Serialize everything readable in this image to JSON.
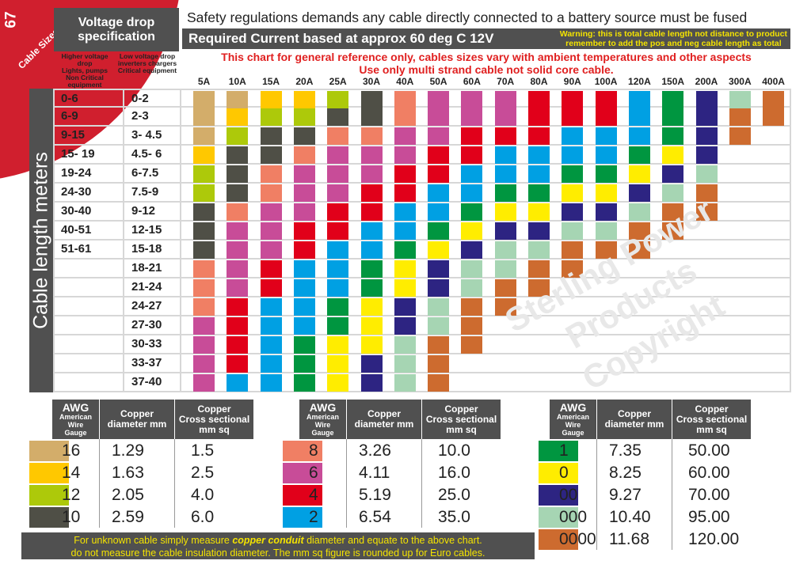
{
  "page": {
    "number": "67",
    "section": "Cable Sizes",
    "safety_notice": "Safety regulations demands any cable directly connected to a battery source must be fused",
    "required_current_title": "Required Current based at approx 60 deg C 12V",
    "warning_line1": "Warning: this is total cable length not distance to product",
    "warning_line2": "remember to add the pos and neg cable length as total",
    "reference_line1": "This chart for general reference only, cables sizes vary with ambient temperatures and other aspects",
    "reference_line2": "Use only multi strand cable not solid core cable.",
    "watermark": [
      "Sterling Power",
      "Products",
      "Copyright"
    ],
    "footer_line1_pre": "For unknown cable simply measure ",
    "footer_line1_em": "copper conduit",
    "footer_line1_post": " diameter and equate to the above chart.",
    "footer_line2": "do not measure the cable insulation diameter.  The mm sq figure is rounded up for Euro cables."
  },
  "voltage_drop": {
    "title_line1": "Voltage drop",
    "title_line2": "specification",
    "higher": [
      "Higher voltage drop",
      "Lights, pumps",
      "Non Critical",
      "equipment"
    ],
    "lower": [
      "Low voltage drop",
      "inverters  chargers",
      "Critical equipment"
    ]
  },
  "side_label": "Cable length meters",
  "chart_data": {
    "type": "table",
    "title": "Required Current based at approx 60 deg C 12V",
    "currents": [
      "5A",
      "10A",
      "15A",
      "20A",
      "25A",
      "30A",
      "40A",
      "50A",
      "60A",
      "70A",
      "80A",
      "90A",
      "100A",
      "120A",
      "150A",
      "200A",
      "300A",
      "400A"
    ],
    "lengths_higher_drop": [
      "0-6",
      "6-9",
      "9-15",
      "15- 19",
      "19-24",
      "24-30",
      "30-40",
      "40-51",
      "51-61",
      "",
      "",
      "",
      "",
      "",
      "",
      ""
    ],
    "lengths_low_drop": [
      "0-2",
      "2-3",
      "3- 4.5",
      "4.5- 6",
      "6-7.5",
      "7.5-9",
      "9-12",
      "12-15",
      "15-18",
      "18-21",
      "21-24",
      "24-27",
      "27-30",
      "30-33",
      "33-37",
      "37-40"
    ],
    "awg_grid_by_current": {
      "5A": [
        "16",
        "16",
        "16",
        "14",
        "12",
        "12",
        "10",
        "10",
        "10",
        "8",
        "8",
        "8",
        "6",
        "6",
        "6",
        "6"
      ],
      "10A": [
        "16",
        "14",
        "12",
        "10",
        "10",
        "10",
        "8",
        "6",
        "6",
        "6",
        "6",
        "4",
        "4",
        "4",
        "4",
        "2"
      ],
      "15A": [
        "14",
        "12",
        "10",
        "10",
        "8",
        "8",
        "6",
        "6",
        "6",
        "4",
        "4",
        "2",
        "2",
        "2",
        "2",
        "2"
      ],
      "20A": [
        "14",
        "12",
        "10",
        "8",
        "6",
        "6",
        "6",
        "4",
        "4",
        "2",
        "2",
        "2",
        "2",
        "1",
        "1",
        "1"
      ],
      "25A": [
        "12",
        "10",
        "8",
        "6",
        "6",
        "6",
        "4",
        "4",
        "2",
        "2",
        "2",
        "1",
        "1",
        "0",
        "0",
        "0"
      ],
      "30A": [
        "10",
        "10",
        "8",
        "6",
        "6",
        "4",
        "4",
        "2",
        "2",
        "1",
        "1",
        "0",
        "0",
        "0",
        "00",
        "00"
      ],
      "40A": [
        "8",
        "8",
        "6",
        "6",
        "4",
        "4",
        "2",
        "2",
        "1",
        "0",
        "0",
        "00",
        "00",
        "000",
        "000",
        "000"
      ],
      "50A": [
        "6",
        "6",
        "6",
        "4",
        "4",
        "2",
        "2",
        "1",
        "0",
        "00",
        "00",
        "000",
        "000",
        "0000",
        "0000",
        "0000"
      ],
      "60A": [
        "6",
        "6",
        "4",
        "4",
        "2",
        "2",
        "1",
        "0",
        "00",
        "000",
        "000",
        "0000",
        "0000",
        "0000",
        "",
        ""
      ],
      "70A": [
        "6",
        "6",
        "4",
        "2",
        "2",
        "1",
        "0",
        "00",
        "000",
        "000",
        "0000",
        "0000",
        "",
        "",
        "",
        ""
      ],
      "80A": [
        "4",
        "4",
        "4",
        "2",
        "2",
        "1",
        "0",
        "00",
        "000",
        "0000",
        "0000",
        "",
        "",
        "",
        "",
        ""
      ],
      "90A": [
        "4",
        "4",
        "2",
        "2",
        "1",
        "0",
        "00",
        "000",
        "0000",
        "0000",
        "",
        "",
        "",
        "",
        "",
        ""
      ],
      "100A": [
        "4",
        "4",
        "2",
        "2",
        "1",
        "0",
        "00",
        "000",
        "0000",
        "",
        "",
        "",
        "",
        "",
        "",
        ""
      ],
      "120A": [
        "2",
        "2",
        "2",
        "1",
        "0",
        "00",
        "000",
        "0000",
        "0000",
        "",
        "",
        "",
        "",
        "",
        "",
        ""
      ],
      "150A": [
        "1",
        "1",
        "1",
        "0",
        "00",
        "000",
        "0000",
        "0000",
        "",
        "",
        "",
        "",
        "",
        "",
        "",
        ""
      ],
      "200A": [
        "00",
        "00",
        "00",
        "00",
        "000",
        "0000",
        "0000",
        "",
        "",
        "",
        "",
        "",
        "",
        "",
        "",
        ""
      ],
      "300A": [
        "000",
        "0000",
        "0000",
        "",
        "",
        "",
        "",
        "",
        "",
        "",
        "",
        "",
        "",
        "",
        "",
        ""
      ],
      "400A": [
        "0000",
        "0000",
        "",
        "",
        "",
        "",
        "",
        "",
        "",
        "",
        "",
        "",
        "",
        "",
        "",
        ""
      ]
    }
  },
  "awg_colors": {
    "16": "#d3ad6a",
    "14": "#ffc800",
    "12": "#adc90a",
    "10": "#4f4f46",
    "8": "#f07f64",
    "6": "#c84c98",
    "4": "#e1001a",
    "2": "#00a0e3",
    "1": "#009640",
    "0": "#ffed00",
    "00": "#2d2482",
    "000": "#a6d5b3",
    "0000": "#cd6b2f"
  },
  "legend": {
    "headers": {
      "awg": "AWG",
      "awg_sub": [
        "American",
        "Wire",
        "Gauge"
      ],
      "diameter": [
        "Copper",
        "diameter mm"
      ],
      "cross": [
        "Copper",
        "Cross sectional",
        "mm sq"
      ]
    },
    "tables": [
      {
        "rows": [
          {
            "awg": "16",
            "diameter": "1.29",
            "cross": "1.5"
          },
          {
            "awg": "14",
            "diameter": "1.63",
            "cross": "2.5"
          },
          {
            "awg": "12",
            "diameter": "2.05",
            "cross": "4.0"
          },
          {
            "awg": "10",
            "diameter": "2.59",
            "cross": "6.0"
          }
        ]
      },
      {
        "rows": [
          {
            "awg": "8",
            "diameter": "3.26",
            "cross": "10.0"
          },
          {
            "awg": "6",
            "diameter": "4.11",
            "cross": "16.0"
          },
          {
            "awg": "4",
            "diameter": "5.19",
            "cross": "25.0"
          },
          {
            "awg": "2",
            "diameter": "6.54",
            "cross": "35.0"
          }
        ]
      },
      {
        "rows": [
          {
            "awg": "1",
            "diameter": "7.35",
            "cross": "50.00"
          },
          {
            "awg": "0",
            "diameter": "8.25",
            "cross": "60.00"
          },
          {
            "awg": "00",
            "diameter": "9.27",
            "cross": "70.00"
          },
          {
            "awg": "000",
            "diameter": "10.40",
            "cross": "95.00"
          },
          {
            "awg": "0000",
            "diameter": "11.68",
            "cross": "120.00"
          }
        ]
      }
    ]
  }
}
